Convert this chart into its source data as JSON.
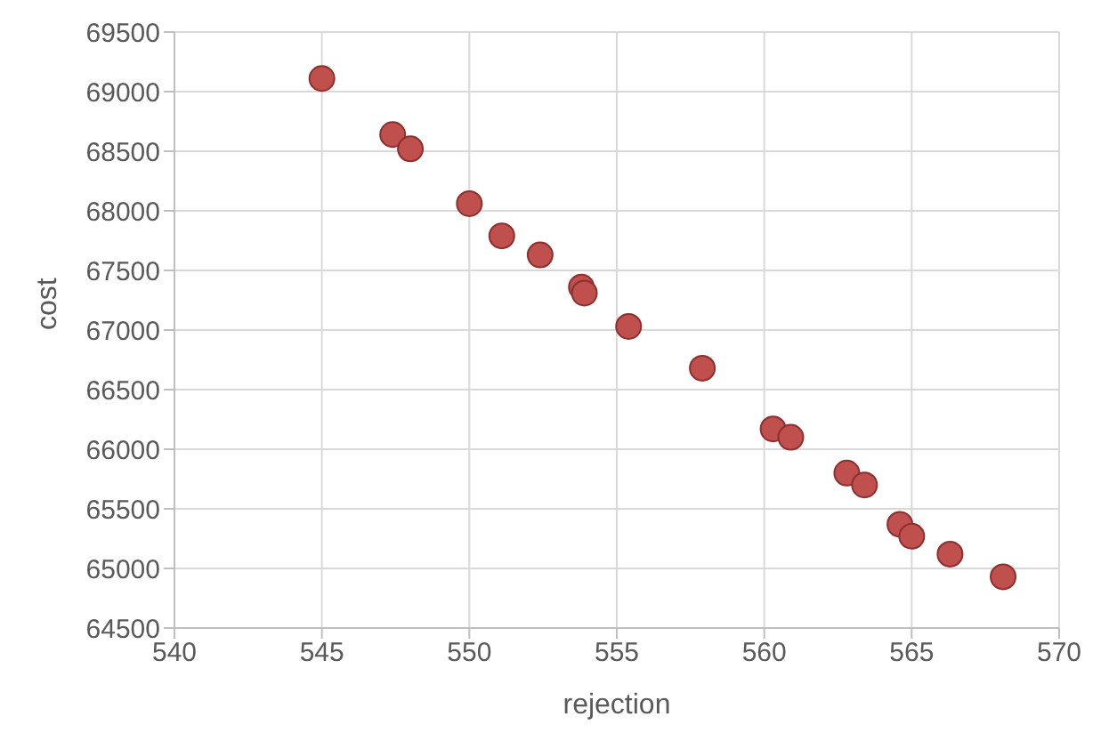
{
  "chart_data": {
    "type": "scatter",
    "xlabel": "rejection",
    "ylabel": "cost",
    "x": [
      545,
      547.4,
      548,
      550,
      551.1,
      552.4,
      553.8,
      553.9,
      555.4,
      557.9,
      560.3,
      560.9,
      562.8,
      563.4,
      564.6,
      565,
      566.3,
      568.1
    ],
    "series": [
      {
        "color": "#c0504d",
        "values": [
          69110,
          68640,
          68520,
          68060,
          67790,
          67630,
          67360,
          67310,
          67030,
          66680,
          66170,
          66100,
          65800,
          65700,
          65370,
          65270,
          65120,
          64930
        ]
      }
    ],
    "xlim": [
      540,
      570
    ],
    "xticks": [
      540,
      545,
      550,
      555,
      560,
      565,
      570
    ],
    "ylim": [
      64500,
      69500
    ],
    "yticks": [
      64500,
      65000,
      65500,
      66000,
      66500,
      67000,
      67500,
      68000,
      68500,
      69000,
      69500
    ],
    "grid": true,
    "marker": "circle"
  }
}
